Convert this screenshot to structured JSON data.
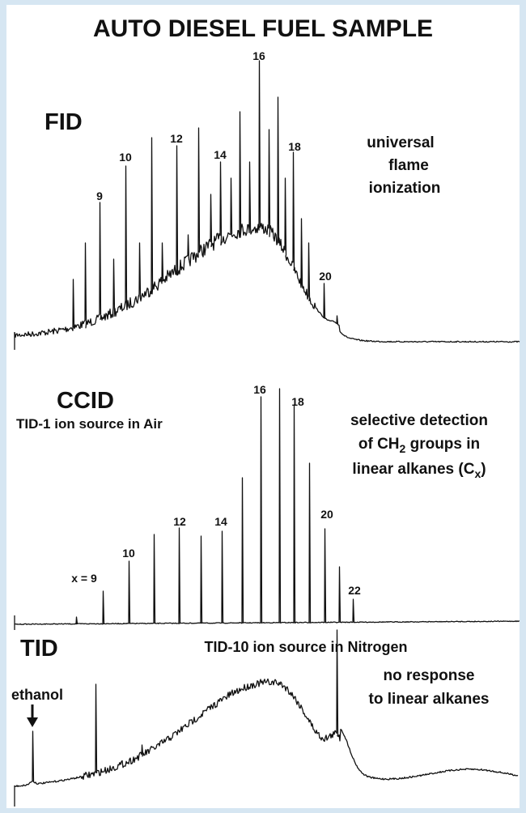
{
  "title": "AUTO DIESEL FUEL SAMPLE",
  "panels": [
    {
      "name": "FID",
      "description": [
        "universal",
        "flame",
        "ionization"
      ],
      "peak_labels": [
        "9",
        "10",
        "12",
        "14",
        "16",
        "18",
        "20"
      ]
    },
    {
      "name": "CCID",
      "subtitle": "TID-1 ion source in Air",
      "description": {
        "line1": "selective detection",
        "line2": [
          "of CH",
          "2",
          " groups in"
        ],
        "line3": [
          "linear alkanes (C",
          "x",
          ")"
        ]
      },
      "peak_labels": [
        "x = 9",
        "10",
        "12",
        "14",
        "16",
        "18",
        "20",
        "22"
      ]
    },
    {
      "name": "TID",
      "subtitle": "TID-10 ion source in Nitrogen",
      "description": [
        "no response",
        "to linear alkanes"
      ],
      "annotation": "ethanol"
    }
  ]
}
